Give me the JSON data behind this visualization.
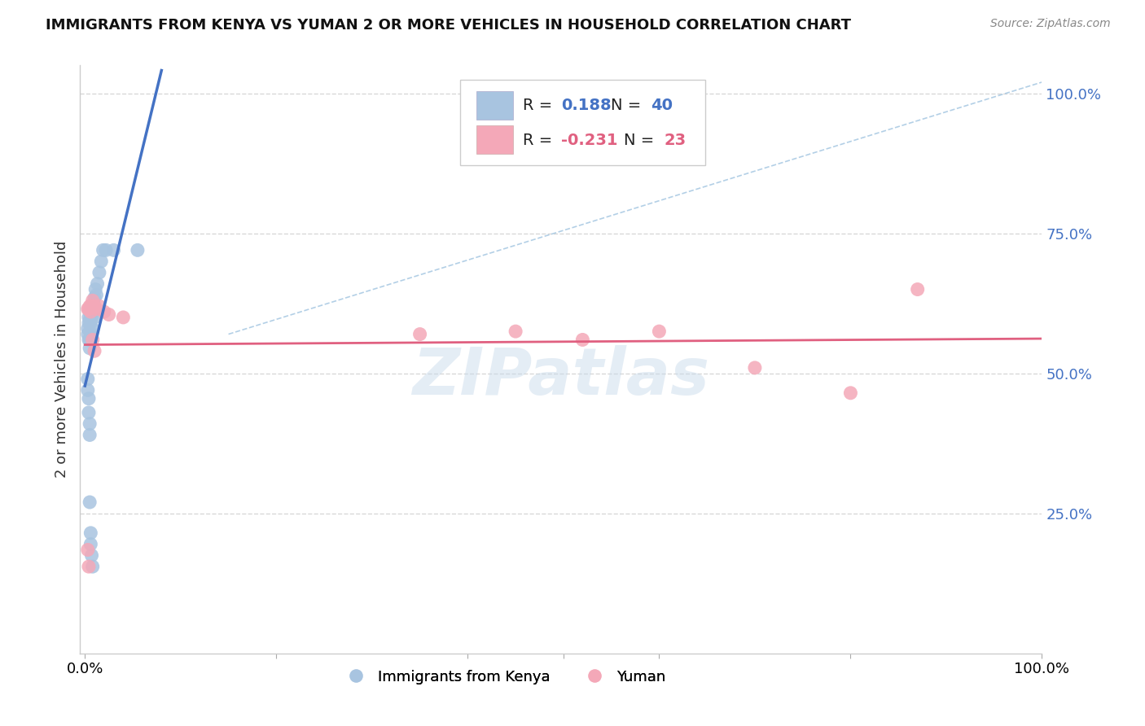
{
  "title": "IMMIGRANTS FROM KENYA VS YUMAN 2 OR MORE VEHICLES IN HOUSEHOLD CORRELATION CHART",
  "source": "Source: ZipAtlas.com",
  "ylabel": "2 or more Vehicles in Household",
  "legend_r_kenya": "0.188",
  "legend_n_kenya": "40",
  "legend_r_yuman": "-0.231",
  "legend_n_yuman": "23",
  "color_kenya": "#a8c4e0",
  "color_yuman": "#f4a8b8",
  "line_color_kenya": "#4472C4",
  "line_color_yuman": "#E06080",
  "dashed_line_color": "#a0c4e0",
  "watermark": "ZIPatlas",
  "kenya_x": [
    0.003,
    0.003,
    0.004,
    0.004,
    0.004,
    0.005,
    0.005,
    0.005,
    0.005,
    0.005,
    0.006,
    0.006,
    0.007,
    0.007,
    0.008,
    0.008,
    0.009,
    0.01,
    0.01,
    0.01,
    0.011,
    0.012,
    0.013,
    0.015,
    0.017,
    0.019,
    0.022,
    0.03,
    0.055,
    0.003,
    0.003,
    0.004,
    0.004,
    0.005,
    0.005,
    0.005,
    0.006,
    0.006,
    0.007,
    0.008
  ],
  "kenya_y": [
    0.58,
    0.57,
    0.6,
    0.59,
    0.56,
    0.61,
    0.595,
    0.575,
    0.56,
    0.545,
    0.615,
    0.59,
    0.62,
    0.6,
    0.61,
    0.58,
    0.625,
    0.635,
    0.615,
    0.6,
    0.65,
    0.64,
    0.66,
    0.68,
    0.7,
    0.72,
    0.72,
    0.72,
    0.72,
    0.49,
    0.47,
    0.455,
    0.43,
    0.41,
    0.39,
    0.27,
    0.215,
    0.195,
    0.175,
    0.155
  ],
  "yuman_x": [
    0.003,
    0.004,
    0.006,
    0.008,
    0.01,
    0.012,
    0.015,
    0.02,
    0.025,
    0.04,
    0.35,
    0.45,
    0.52,
    0.6,
    0.7,
    0.8,
    0.87,
    0.003,
    0.004,
    0.005,
    0.006,
    0.008,
    0.01
  ],
  "yuman_y": [
    0.615,
    0.615,
    0.62,
    0.63,
    0.62,
    0.615,
    0.62,
    0.61,
    0.605,
    0.6,
    0.57,
    0.575,
    0.56,
    0.575,
    0.51,
    0.465,
    0.65,
    0.185,
    0.155,
    0.62,
    0.61,
    0.56,
    0.54
  ],
  "xlim": [
    -0.005,
    1.0
  ],
  "ylim": [
    0.0,
    1.05
  ],
  "background_color": "#ffffff",
  "grid_color": "#d8d8d8"
}
